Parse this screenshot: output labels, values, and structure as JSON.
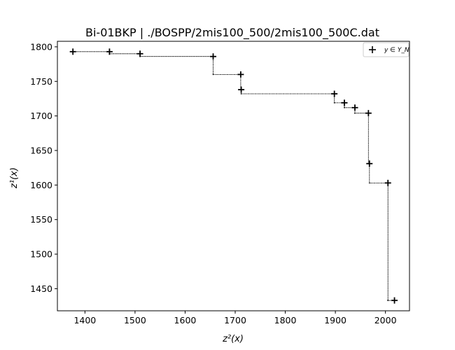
{
  "chart_data": {
    "type": "scatter",
    "title": "Bi-01BKP | ./BOSPP/2mis100_500/2mis100_500C.dat",
    "xlabel": "z²(x)",
    "ylabel": "z¹(x)",
    "xlim": [
      1345,
      2048
    ],
    "ylim": [
      1418,
      1808
    ],
    "xticks": [
      1400,
      1500,
      1600,
      1700,
      1800,
      1900,
      2000
    ],
    "yticks": [
      1450,
      1500,
      1550,
      1600,
      1650,
      1700,
      1750,
      1800
    ],
    "legend": {
      "label": "y ∈ Y_N",
      "position": "top-right"
    },
    "grid": false,
    "series": [
      {
        "name": "y ∈ Y_N",
        "marker": "+",
        "color": "#000000",
        "x": [
          1376,
          1449,
          1510,
          1656,
          1711,
          1712,
          1898,
          1918,
          1939,
          1966,
          1968,
          2005,
          2018
        ],
        "y": [
          1793,
          1793,
          1790,
          1786,
          1760,
          1738,
          1732,
          1719,
          1712,
          1704,
          1631,
          1603,
          1433
        ]
      }
    ],
    "staircase_path": {
      "style": "dotted",
      "x": [
        1376,
        1449,
        1449,
        1510,
        1510,
        1656,
        1656,
        1711,
        1711,
        1712,
        1712,
        1898,
        1898,
        1918,
        1918,
        1939,
        1939,
        1966,
        1966,
        1968,
        1968,
        2005,
        2005,
        2018,
        2005,
        2005,
        1968,
        1968,
        1966,
        1966,
        1939,
        1939,
        1918,
        1918,
        1898,
        1898,
        1712,
        1712,
        1711,
        1711,
        1656,
        1656,
        1510,
        1510,
        1449,
        1449,
        1376
      ],
      "y": [
        1793,
        1793,
        1790,
        1790,
        1786,
        1786,
        1760,
        1760,
        1738,
        1738,
        1732,
        1732,
        1719,
        1719,
        1712,
        1712,
        1704,
        1704,
        1631,
        1631,
        1603,
        1603,
        1433,
        1433,
        1433,
        1603,
        1603,
        1631,
        1631,
        1704,
        1704,
        1712,
        1712,
        1719,
        1719,
        1732,
        1732,
        1738,
        1738,
        1760,
        1760,
        1786,
        1786,
        1790,
        1790,
        1793,
        1793
      ]
    }
  }
}
